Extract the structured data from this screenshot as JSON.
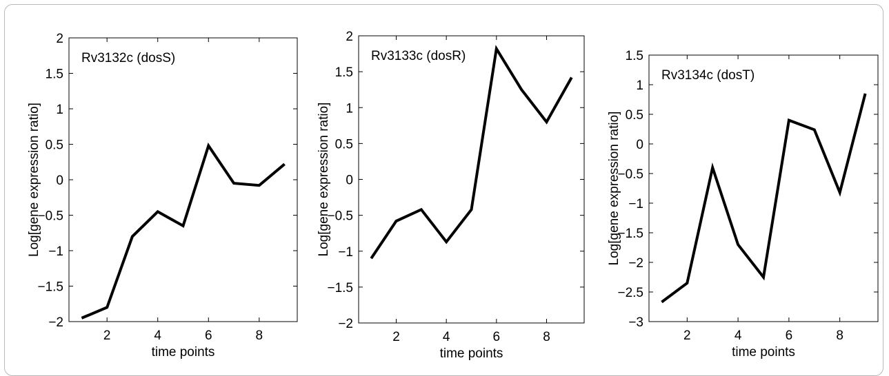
{
  "chart_data": [
    {
      "type": "line",
      "title": "Rv3132c (dosS)",
      "xlabel": "time points",
      "ylabel": "Log[gene expression ratio]",
      "xlim": [
        0.5,
        9.5
      ],
      "ylim": [
        -2,
        2
      ],
      "xticks": [
        2,
        4,
        6,
        8
      ],
      "yticks": [
        -2,
        -1.5,
        -1,
        -0.5,
        0,
        0.5,
        1,
        1.5,
        2
      ],
      "x": [
        1,
        2,
        3,
        4,
        5,
        6,
        7,
        8,
        9
      ],
      "y": [
        -1.95,
        -1.8,
        -0.8,
        -0.45,
        -0.65,
        0.48,
        -0.05,
        -0.08,
        0.22
      ],
      "color": "#000000"
    },
    {
      "type": "line",
      "title": "Rv3133c (dosR)",
      "xlabel": "time points",
      "ylabel": "Log[gene expression ratio]",
      "xlim": [
        0.5,
        9.5
      ],
      "ylim": [
        -2,
        2
      ],
      "xticks": [
        2,
        4,
        6,
        8
      ],
      "yticks": [
        -2,
        -1.5,
        -1,
        -0.5,
        0,
        0.5,
        1,
        1.5,
        2
      ],
      "x": [
        1,
        2,
        3,
        4,
        5,
        6,
        7,
        8,
        9
      ],
      "y": [
        -1.1,
        -0.58,
        -0.42,
        -0.87,
        -0.42,
        1.82,
        1.25,
        0.8,
        1.42
      ],
      "color": "#000000"
    },
    {
      "type": "line",
      "title": "Rv3134c (dosT)",
      "xlabel": "time points",
      "ylabel": "Log[gene expression ratio]",
      "xlim": [
        0.5,
        9.5
      ],
      "ylim": [
        -3,
        1.5
      ],
      "xticks": [
        2,
        4,
        6,
        8
      ],
      "yticks": [
        -3,
        -2.5,
        -2,
        -1.5,
        -1,
        -0.5,
        0,
        0.5,
        1,
        1.5
      ],
      "x": [
        1,
        2,
        3,
        4,
        5,
        6,
        7,
        8,
        9
      ],
      "y": [
        -2.67,
        -2.35,
        -0.4,
        -1.7,
        -2.25,
        0.4,
        0.24,
        -0.82,
        0.85
      ],
      "color": "#000000"
    }
  ]
}
